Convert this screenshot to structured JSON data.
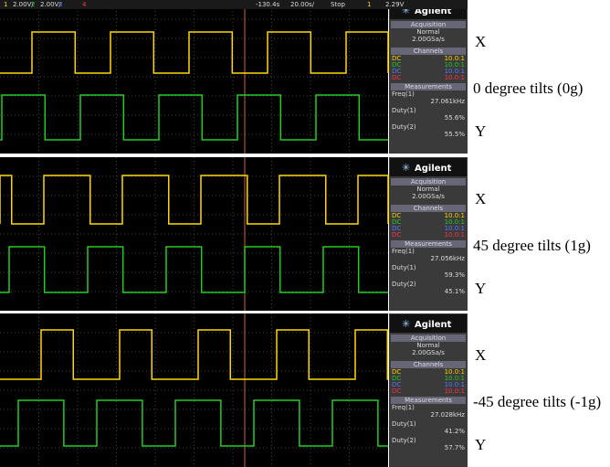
{
  "status_bar": [
    "1",
    "2.00V/",
    "2",
    "2.00V/",
    "3",
    "4",
    "-130.4s",
    "20.00s/",
    "Stop",
    "1",
    "2.29V"
  ],
  "panels": [
    {
      "brand": "Agilent",
      "acquisition_title": "Acquisition",
      "acquisition_mode": "Normal",
      "sample_rate": "2.00GSa/s",
      "channels_title": "Channels",
      "channels": [
        {
          "coupling": "DC",
          "ratio": "10.0:1"
        },
        {
          "coupling": "DC",
          "ratio": "10.0:1"
        },
        {
          "coupling": "DC",
          "ratio": "10.0:1"
        },
        {
          "coupling": "DC",
          "ratio": "10.0:1"
        }
      ],
      "measurements_title": "Measurements",
      "measurements": [
        {
          "label": "Freq(1)",
          "value": "27.061kHz"
        },
        {
          "label": "Duty(1)",
          "value": "55.6%"
        },
        {
          "label": "Duty(2)",
          "value": "55.5%"
        }
      ],
      "label_x": "X",
      "tilt": "0 degree tilts (0g)",
      "label_y": "Y"
    },
    {
      "brand": "Agilent",
      "acquisition_title": "Acquisition",
      "acquisition_mode": "Normal",
      "sample_rate": "2.00GSa/s",
      "channels_title": "Channels",
      "channels": [
        {
          "coupling": "DC",
          "ratio": "10.0:1"
        },
        {
          "coupling": "DC",
          "ratio": "10.0:1"
        },
        {
          "coupling": "DC",
          "ratio": "10.0:1"
        },
        {
          "coupling": "DC",
          "ratio": "10.0:1"
        }
      ],
      "measurements_title": "Measurements",
      "measurements": [
        {
          "label": "Freq(1)",
          "value": "27.056kHz"
        },
        {
          "label": "Duty(1)",
          "value": "59.3%"
        },
        {
          "label": "Duty(2)",
          "value": "45.1%"
        }
      ],
      "label_x": "X",
      "tilt": "45 degree tilts (1g)",
      "label_y": "Y"
    },
    {
      "brand": "Agilent",
      "acquisition_title": "Acquisition",
      "acquisition_mode": "Normal",
      "sample_rate": "2.00GSa/s",
      "channels_title": "Channels",
      "channels": [
        {
          "coupling": "DC",
          "ratio": "10.0:1"
        },
        {
          "coupling": "DC",
          "ratio": "10.0:1"
        },
        {
          "coupling": "DC",
          "ratio": "10.0:1"
        },
        {
          "coupling": "DC",
          "ratio": "10.0:1"
        }
      ],
      "measurements_title": "Measurements",
      "measurements": [
        {
          "label": "Freq(1)",
          "value": "27.028kHz"
        },
        {
          "label": "Duty(1)",
          "value": "41.2%"
        },
        {
          "label": "Duty(2)",
          "value": "57.7%"
        }
      ],
      "label_x": "X",
      "tilt": "-45 degree tilts (-1g)",
      "label_y": "Y"
    }
  ]
}
